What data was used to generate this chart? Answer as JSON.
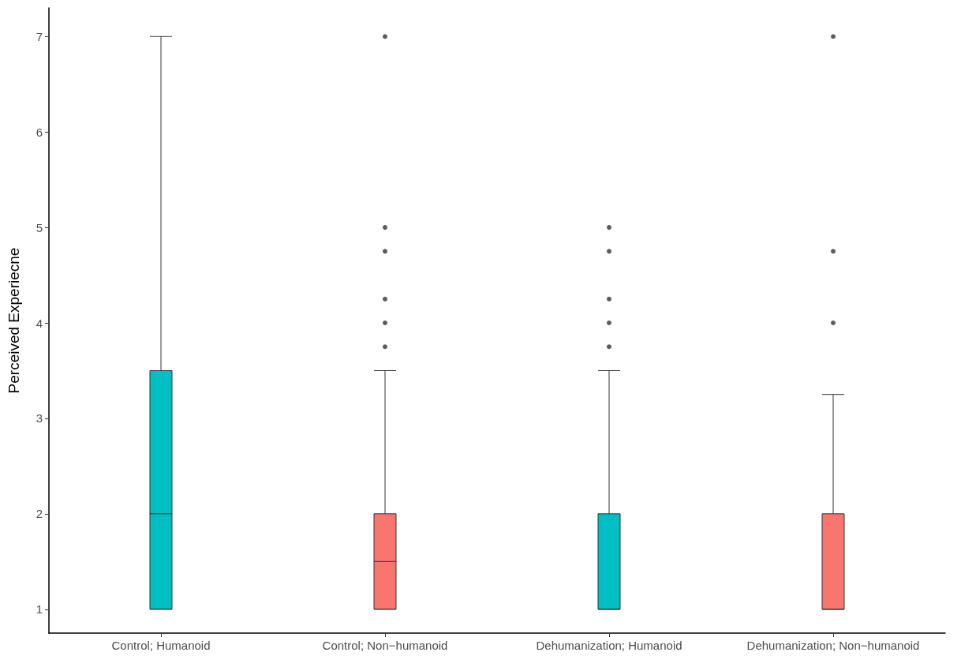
{
  "chart_data": {
    "type": "box",
    "ylabel": "Perceived Experiecne",
    "categories": [
      "Control; Humanoid",
      "Control; Non−humanoid",
      "Dehumanization; Humanoid",
      "Dehumanization; Non−humanoid"
    ],
    "colors": [
      "#00bfc4",
      "#f8766d",
      "#00bfc4",
      "#f8766d"
    ],
    "boxes": [
      {
        "low": 1,
        "q1": 1,
        "median": 2,
        "q3": 3.5,
        "high": 7
      },
      {
        "low": 1,
        "q1": 1,
        "median": 1.5,
        "q3": 2,
        "high": 3.5,
        "outliers": [
          3.75,
          4,
          4.25,
          4.75,
          5,
          7
        ]
      },
      {
        "low": 1,
        "q1": 1,
        "median": 1,
        "q3": 2,
        "high": 3.5,
        "outliers": [
          3.75,
          4,
          4.25,
          4.75,
          5
        ]
      },
      {
        "low": 1,
        "q1": 1,
        "median": 1,
        "q3": 2,
        "high": 3.25,
        "outliers": [
          4,
          4.75,
          7
        ]
      }
    ],
    "ylim": [
      0.75,
      7.3
    ],
    "yticks": [
      1,
      2,
      3,
      4,
      5,
      6,
      7
    ]
  }
}
